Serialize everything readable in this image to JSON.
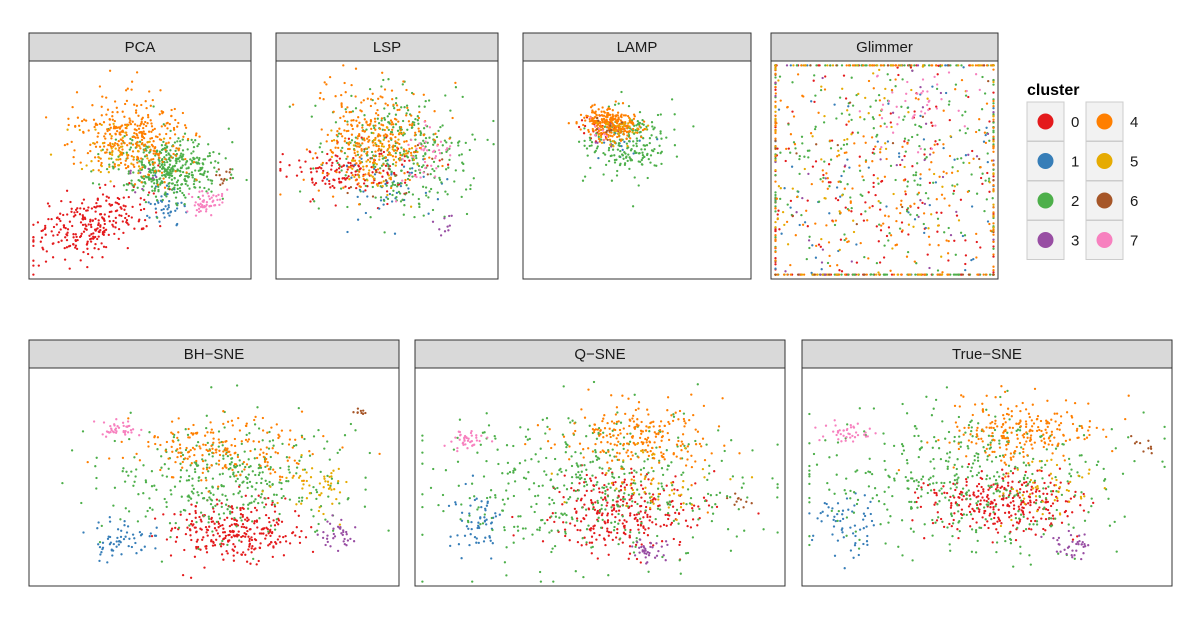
{
  "chart_data": [
    {
      "type": "scatter",
      "title": "PCA",
      "clusters": [
        {
          "id": 0,
          "n": 260,
          "mx": 0.28,
          "my": 0.75,
          "sx": 0.14,
          "sy": 0.07,
          "rot": -0.38
        },
        {
          "id": 1,
          "n": 45,
          "mx": 0.62,
          "my": 0.66,
          "sx": 0.05,
          "sy": 0.04,
          "rot": 0
        },
        {
          "id": 2,
          "n": 420,
          "mx": 0.63,
          "my": 0.49,
          "sx": 0.12,
          "sy": 0.07,
          "rot": 0
        },
        {
          "id": 3,
          "n": 8,
          "mx": 0.5,
          "my": 0.55,
          "sx": 0.04,
          "sy": 0.04,
          "rot": 0
        },
        {
          "id": 4,
          "n": 330,
          "mx": 0.46,
          "my": 0.34,
          "sx": 0.13,
          "sy": 0.09,
          "rot": 0.3
        },
        {
          "id": 5,
          "n": 50,
          "mx": 0.4,
          "my": 0.42,
          "sx": 0.08,
          "sy": 0.06,
          "rot": 0
        },
        {
          "id": 6,
          "n": 12,
          "mx": 0.88,
          "my": 0.53,
          "sx": 0.03,
          "sy": 0.02,
          "rot": 0
        },
        {
          "id": 7,
          "n": 55,
          "mx": 0.8,
          "my": 0.65,
          "sx": 0.04,
          "sy": 0.025,
          "rot": -0.5
        }
      ]
    },
    {
      "type": "scatter",
      "title": "LSP",
      "clusters": [
        {
          "id": 0,
          "n": 150,
          "mx": 0.33,
          "my": 0.5,
          "sx": 0.15,
          "sy": 0.06,
          "rot": 0
        },
        {
          "id": 1,
          "n": 50,
          "mx": 0.5,
          "my": 0.56,
          "sx": 0.12,
          "sy": 0.09,
          "rot": 0
        },
        {
          "id": 2,
          "n": 320,
          "mx": 0.56,
          "my": 0.42,
          "sx": 0.15,
          "sy": 0.14,
          "rot": 0
        },
        {
          "id": 3,
          "n": 10,
          "mx": 0.74,
          "my": 0.75,
          "sx": 0.04,
          "sy": 0.04,
          "rot": 0
        },
        {
          "id": 4,
          "n": 300,
          "mx": 0.44,
          "my": 0.36,
          "sx": 0.13,
          "sy": 0.12,
          "rot": 0
        },
        {
          "id": 5,
          "n": 60,
          "mx": 0.45,
          "my": 0.45,
          "sx": 0.1,
          "sy": 0.08,
          "rot": 0
        },
        {
          "id": 6,
          "n": 15,
          "mx": 0.5,
          "my": 0.5,
          "sx": 0.1,
          "sy": 0.08,
          "rot": 0
        },
        {
          "id": 7,
          "n": 40,
          "mx": 0.66,
          "my": 0.43,
          "sx": 0.06,
          "sy": 0.06,
          "rot": 0
        }
      ]
    },
    {
      "type": "scatter",
      "title": "LAMP",
      "clusters": [
        {
          "id": 0,
          "n": 20,
          "mx": 0.35,
          "my": 0.3,
          "sx": 0.05,
          "sy": 0.03,
          "rot": 0
        },
        {
          "id": 1,
          "n": 15,
          "mx": 0.42,
          "my": 0.38,
          "sx": 0.06,
          "sy": 0.05,
          "rot": 0
        },
        {
          "id": 2,
          "n": 200,
          "mx": 0.45,
          "my": 0.38,
          "sx": 0.09,
          "sy": 0.08,
          "rot": 0
        },
        {
          "id": 3,
          "n": 8,
          "mx": 0.38,
          "my": 0.33,
          "sx": 0.04,
          "sy": 0.04,
          "rot": 0
        },
        {
          "id": 4,
          "n": 260,
          "mx": 0.38,
          "my": 0.29,
          "sx": 0.06,
          "sy": 0.035,
          "rot": 0.2
        },
        {
          "id": 5,
          "n": 30,
          "mx": 0.42,
          "my": 0.32,
          "sx": 0.05,
          "sy": 0.04,
          "rot": 0
        },
        {
          "id": 6,
          "n": 10,
          "mx": 0.38,
          "my": 0.3,
          "sx": 0.04,
          "sy": 0.03,
          "rot": 0
        },
        {
          "id": 7,
          "n": 8,
          "mx": 0.33,
          "my": 0.33,
          "sx": 0.03,
          "sy": 0.03,
          "rot": 0
        }
      ]
    },
    {
      "type": "scatter",
      "title": "Glimmer",
      "clusters": [
        {
          "id": 0,
          "n": 220,
          "mx": 0.5,
          "my": 0.5,
          "sx": 0.4,
          "sy": 0.43,
          "rot": 0
        },
        {
          "id": 1,
          "n": 90,
          "mx": 0.5,
          "my": 0.5,
          "sx": 0.4,
          "sy": 0.43,
          "rot": 0
        },
        {
          "id": 2,
          "n": 330,
          "mx": 0.5,
          "my": 0.5,
          "sx": 0.4,
          "sy": 0.43,
          "rot": 0
        },
        {
          "id": 3,
          "n": 50,
          "mx": 0.5,
          "my": 0.5,
          "sx": 0.4,
          "sy": 0.43,
          "rot": 0
        },
        {
          "id": 4,
          "n": 270,
          "mx": 0.5,
          "my": 0.5,
          "sx": 0.4,
          "sy": 0.43,
          "rot": 0
        },
        {
          "id": 5,
          "n": 130,
          "mx": 0.5,
          "my": 0.5,
          "sx": 0.4,
          "sy": 0.43,
          "rot": 0
        },
        {
          "id": 6,
          "n": 30,
          "mx": 0.5,
          "my": 0.5,
          "sx": 0.4,
          "sy": 0.43,
          "rot": 0
        },
        {
          "id": 7,
          "n": 45,
          "mx": 0.65,
          "my": 0.22,
          "sx": 0.12,
          "sy": 0.1,
          "rot": 0
        }
      ]
    },
    {
      "type": "scatter",
      "title": "BH−SNE",
      "clusters": [
        {
          "id": 0,
          "n": 280,
          "mx": 0.55,
          "my": 0.75,
          "sx": 0.09,
          "sy": 0.07,
          "rot": 0
        },
        {
          "id": 1,
          "n": 60,
          "mx": 0.24,
          "my": 0.78,
          "sx": 0.05,
          "sy": 0.04,
          "rot": 0
        },
        {
          "id": 2,
          "n": 380,
          "mx": 0.55,
          "my": 0.52,
          "sx": 0.17,
          "sy": 0.13,
          "rot": 0
        },
        {
          "id": 3,
          "n": 35,
          "mx": 0.84,
          "my": 0.76,
          "sx": 0.025,
          "sy": 0.03,
          "rot": 0
        },
        {
          "id": 4,
          "n": 200,
          "mx": 0.52,
          "my": 0.37,
          "sx": 0.12,
          "sy": 0.07,
          "rot": 0
        },
        {
          "id": 5,
          "n": 50,
          "mx": 0.78,
          "my": 0.52,
          "sx": 0.05,
          "sy": 0.06,
          "rot": 0
        },
        {
          "id": 6,
          "n": 10,
          "mx": 0.9,
          "my": 0.2,
          "sx": 0.01,
          "sy": 0.01,
          "rot": 0
        },
        {
          "id": 7,
          "n": 40,
          "mx": 0.24,
          "my": 0.28,
          "sx": 0.03,
          "sy": 0.02,
          "rot": 0
        }
      ]
    },
    {
      "type": "scatter",
      "title": "Q−SNE",
      "clusters": [
        {
          "id": 0,
          "n": 290,
          "mx": 0.57,
          "my": 0.66,
          "sx": 0.1,
          "sy": 0.09,
          "rot": 0
        },
        {
          "id": 1,
          "n": 60,
          "mx": 0.17,
          "my": 0.7,
          "sx": 0.04,
          "sy": 0.07,
          "rot": 0
        },
        {
          "id": 2,
          "n": 450,
          "mx": 0.47,
          "my": 0.55,
          "sx": 0.2,
          "sy": 0.17,
          "rot": 0
        },
        {
          "id": 3,
          "n": 35,
          "mx": 0.63,
          "my": 0.84,
          "sx": 0.025,
          "sy": 0.025,
          "rot": 0
        },
        {
          "id": 4,
          "n": 230,
          "mx": 0.6,
          "my": 0.32,
          "sx": 0.1,
          "sy": 0.08,
          "rot": 0
        },
        {
          "id": 5,
          "n": 50,
          "mx": 0.65,
          "my": 0.52,
          "sx": 0.1,
          "sy": 0.09,
          "rot": 0
        },
        {
          "id": 6,
          "n": 10,
          "mx": 0.88,
          "my": 0.6,
          "sx": 0.02,
          "sy": 0.02,
          "rot": 0
        },
        {
          "id": 7,
          "n": 40,
          "mx": 0.14,
          "my": 0.33,
          "sx": 0.025,
          "sy": 0.02,
          "rot": 0
        }
      ]
    },
    {
      "type": "scatter",
      "title": "True−SNE",
      "clusters": [
        {
          "id": 0,
          "n": 290,
          "mx": 0.54,
          "my": 0.62,
          "sx": 0.1,
          "sy": 0.07,
          "rot": 0
        },
        {
          "id": 1,
          "n": 60,
          "mx": 0.12,
          "my": 0.72,
          "sx": 0.04,
          "sy": 0.08,
          "rot": 0
        },
        {
          "id": 2,
          "n": 450,
          "mx": 0.45,
          "my": 0.5,
          "sx": 0.2,
          "sy": 0.17,
          "rot": 0
        },
        {
          "id": 3,
          "n": 35,
          "mx": 0.73,
          "my": 0.82,
          "sx": 0.025,
          "sy": 0.03,
          "rot": 0
        },
        {
          "id": 4,
          "n": 230,
          "mx": 0.6,
          "my": 0.3,
          "sx": 0.1,
          "sy": 0.08,
          "rot": 0
        },
        {
          "id": 5,
          "n": 50,
          "mx": 0.65,
          "my": 0.55,
          "sx": 0.08,
          "sy": 0.08,
          "rot": 0
        },
        {
          "id": 6,
          "n": 10,
          "mx": 0.92,
          "my": 0.36,
          "sx": 0.02,
          "sy": 0.02,
          "rot": 0
        },
        {
          "id": 7,
          "n": 40,
          "mx": 0.12,
          "my": 0.3,
          "sx": 0.03,
          "sy": 0.02,
          "rot": 0
        }
      ]
    }
  ],
  "legend": {
    "title": "cluster",
    "items": [
      {
        "label": "0",
        "color": "#E41A1C"
      },
      {
        "label": "1",
        "color": "#377EB8"
      },
      {
        "label": "2",
        "color": "#4DAF4A"
      },
      {
        "label": "3",
        "color": "#984EA3"
      },
      {
        "label": "4",
        "color": "#FF7F00"
      },
      {
        "label": "5",
        "color": "#E6AB02"
      },
      {
        "label": "6",
        "color": "#A65628"
      },
      {
        "label": "7",
        "color": "#F781BF"
      }
    ]
  }
}
